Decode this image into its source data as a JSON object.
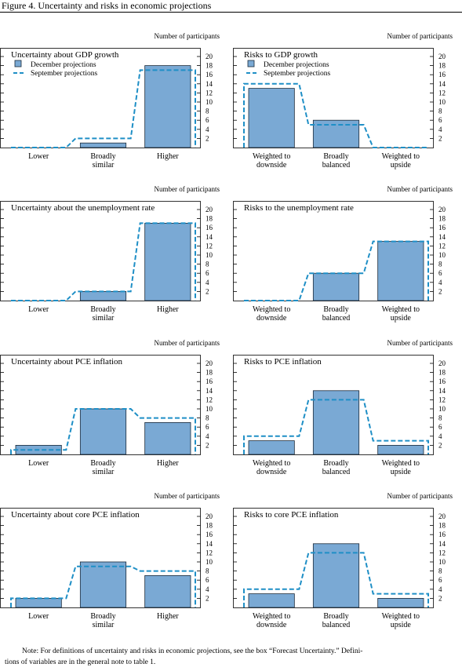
{
  "figure_title": "Figure 4. Uncertainty and risks in economic projections",
  "note": {
    "line1": "Note:  For definitions of uncertainty and risks in economic projections, see the box “Forecast Uncertainty.” Defini-",
    "line2": "tions of variables are in the general note to table 1."
  },
  "colors": {
    "bar_fill": "#7aa9d4",
    "bar_stroke": "#1a2a3a",
    "dashed_line": "#1f8fc6",
    "axis": "#000000"
  },
  "chart_data": [
    {
      "type": "bar",
      "title": "Uncertainty about GDP growth",
      "ylabel": "Number of participants",
      "categories": [
        "Lower",
        "Broadly\nsimilar",
        "Higher"
      ],
      "ylim": [
        0,
        20
      ],
      "yticks": [
        2,
        4,
        6,
        8,
        10,
        12,
        14,
        16,
        18,
        20
      ],
      "series": [
        {
          "name": "December projections",
          "style": "bar",
          "values": [
            0,
            1,
            18
          ]
        },
        {
          "name": "September projections",
          "style": "dashed-step",
          "values": [
            0,
            2,
            17
          ]
        }
      ],
      "legend": {
        "position": "top-left",
        "entries": [
          "December projections",
          "September projections"
        ]
      }
    },
    {
      "type": "bar",
      "title": "Risks to GDP growth",
      "ylabel": "Number of participants",
      "categories": [
        "Weighted to\ndownside",
        "Broadly\nbalanced",
        "Weighted to\nupside"
      ],
      "ylim": [
        0,
        20
      ],
      "yticks": [
        2,
        4,
        6,
        8,
        10,
        12,
        14,
        16,
        18,
        20
      ],
      "series": [
        {
          "name": "December projections",
          "style": "bar",
          "values": [
            13,
            6,
            0
          ]
        },
        {
          "name": "September projections",
          "style": "dashed-step",
          "values": [
            14,
            5,
            0
          ]
        }
      ],
      "legend": {
        "position": "top-left",
        "entries": [
          "December projections",
          "September projections"
        ]
      }
    },
    {
      "type": "bar",
      "title": "Uncertainty about the unemployment rate",
      "ylabel": "Number of participants",
      "categories": [
        "Lower",
        "Broadly\nsimilar",
        "Higher"
      ],
      "ylim": [
        0,
        20
      ],
      "yticks": [
        2,
        4,
        6,
        8,
        10,
        12,
        14,
        16,
        18,
        20
      ],
      "series": [
        {
          "name": "December projections",
          "style": "bar",
          "values": [
            0,
            2,
            17
          ]
        },
        {
          "name": "September projections",
          "style": "dashed-step",
          "values": [
            0,
            2,
            17
          ]
        }
      ]
    },
    {
      "type": "bar",
      "title": "Risks to the unemployment rate",
      "ylabel": "Number of participants",
      "categories": [
        "Weighted to\ndownside",
        "Broadly\nbalanced",
        "Weighted to\nupside"
      ],
      "ylim": [
        0,
        20
      ],
      "yticks": [
        2,
        4,
        6,
        8,
        10,
        12,
        14,
        16,
        18,
        20
      ],
      "series": [
        {
          "name": "December projections",
          "style": "bar",
          "values": [
            0,
            6,
            13
          ]
        },
        {
          "name": "September projections",
          "style": "dashed-step",
          "values": [
            0,
            6,
            13
          ]
        }
      ]
    },
    {
      "type": "bar",
      "title": "Uncertainty about PCE inflation",
      "ylabel": "Number of participants",
      "categories": [
        "Lower",
        "Broadly\nsimilar",
        "Higher"
      ],
      "ylim": [
        0,
        20
      ],
      "yticks": [
        2,
        4,
        6,
        8,
        10,
        12,
        14,
        16,
        18,
        20
      ],
      "series": [
        {
          "name": "December projections",
          "style": "bar",
          "values": [
            2,
            10,
            7
          ]
        },
        {
          "name": "September projections",
          "style": "dashed-step",
          "values": [
            1,
            10,
            8
          ]
        }
      ]
    },
    {
      "type": "bar",
      "title": "Risks to PCE inflation",
      "ylabel": "Number of participants",
      "categories": [
        "Weighted to\ndownside",
        "Broadly\nbalanced",
        "Weighted to\nupside"
      ],
      "ylim": [
        0,
        20
      ],
      "yticks": [
        2,
        4,
        6,
        8,
        10,
        12,
        14,
        16,
        18,
        20
      ],
      "series": [
        {
          "name": "December projections",
          "style": "bar",
          "values": [
            3,
            14,
            2
          ]
        },
        {
          "name": "September projections",
          "style": "dashed-step",
          "values": [
            4,
            12,
            3
          ]
        }
      ]
    },
    {
      "type": "bar",
      "title": "Uncertainty about core PCE inflation",
      "ylabel": "Number of participants",
      "categories": [
        "Lower",
        "Broadly\nsimilar",
        "Higher"
      ],
      "ylim": [
        0,
        20
      ],
      "yticks": [
        2,
        4,
        6,
        8,
        10,
        12,
        14,
        16,
        18,
        20
      ],
      "series": [
        {
          "name": "December projections",
          "style": "bar",
          "values": [
            2,
            10,
            7
          ]
        },
        {
          "name": "September projections",
          "style": "dashed-step",
          "values": [
            2,
            9,
            8
          ]
        }
      ]
    },
    {
      "type": "bar",
      "title": "Risks to core PCE inflation",
      "ylabel": "Number of participants",
      "categories": [
        "Weighted to\ndownside",
        "Broadly\nbalanced",
        "Weighted to\nupside"
      ],
      "ylim": [
        0,
        20
      ],
      "yticks": [
        2,
        4,
        6,
        8,
        10,
        12,
        14,
        16,
        18,
        20
      ],
      "series": [
        {
          "name": "December projections",
          "style": "bar",
          "values": [
            3,
            14,
            2
          ]
        },
        {
          "name": "September projections",
          "style": "dashed-step",
          "values": [
            4,
            12,
            3
          ]
        }
      ]
    }
  ]
}
